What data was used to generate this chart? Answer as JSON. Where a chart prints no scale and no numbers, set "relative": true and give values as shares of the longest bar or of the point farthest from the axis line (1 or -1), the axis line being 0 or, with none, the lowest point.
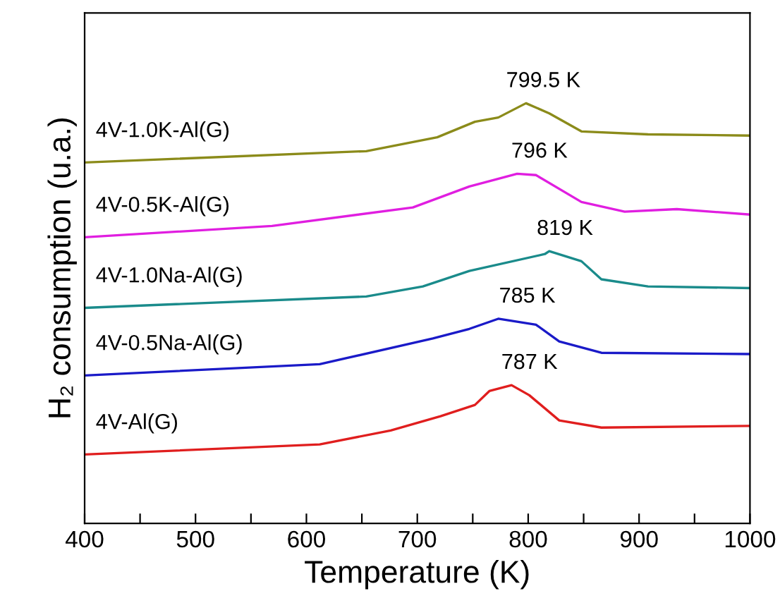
{
  "chart_data": {
    "type": "line",
    "relative": true,
    "xlabel": "Temperature (K)",
    "ylabel": "H₂ consumption (u.a.)",
    "xlim": [
      400,
      1000
    ],
    "xticks": [
      400,
      {
        "value": 450,
        "label": null
      },
      500,
      {
        "value": 550,
        "label": null
      },
      600,
      {
        "value": 650,
        "label": null
      },
      700,
      {
        "value": 750,
        "label": null
      },
      800,
      {
        "value": 850,
        "label": null
      },
      900,
      {
        "value": 950,
        "label": null
      },
      1000
    ],
    "tick_labels": "x",
    "grid": false,
    "legend": false,
    "marker": "none",
    "line_style": "solid",
    "series": [
      {
        "name": "4V-1.0K-Al(G)",
        "color": "#8b8b1a",
        "x": [
          400,
          654,
          718,
          752,
          773,
          798,
          819,
          848,
          908,
          1000
        ],
        "values": [
          0.859,
          0.886,
          0.919,
          0.956,
          0.966,
          1.0,
          0.976,
          0.933,
          0.926,
          0.923
        ]
      },
      {
        "name": "4V-0.5K-Al(G)",
        "color": "#e01ee0",
        "x": [
          400,
          569,
          696,
          747,
          790,
          807,
          848,
          887,
          934,
          1000
        ],
        "values": [
          0.681,
          0.708,
          0.752,
          0.802,
          0.832,
          0.829,
          0.765,
          0.742,
          0.748,
          0.735
        ]
      },
      {
        "name": "4V-1.0Na-Al(G)",
        "color": "#1a8b8b",
        "x": [
          400,
          654,
          705,
          747,
          815,
          819,
          848,
          866,
          908,
          1000
        ],
        "values": [
          0.513,
          0.54,
          0.564,
          0.601,
          0.641,
          0.648,
          0.624,
          0.581,
          0.564,
          0.56
        ]
      },
      {
        "name": "4V-0.5Na-Al(G)",
        "color": "#1a1ac8",
        "x": [
          400,
          612,
          714,
          747,
          773,
          807,
          828,
          866,
          1000
        ],
        "values": [
          0.352,
          0.379,
          0.44,
          0.463,
          0.487,
          0.473,
          0.433,
          0.406,
          0.403
        ]
      },
      {
        "name": "4V-Al(G)",
        "color": "#e01e1e",
        "x": [
          400,
          612,
          676,
          721,
          752,
          765,
          785,
          801,
          828,
          866,
          1000
        ],
        "values": [
          0.164,
          0.188,
          0.221,
          0.255,
          0.282,
          0.315,
          0.329,
          0.305,
          0.245,
          0.228,
          0.232
        ]
      }
    ],
    "annotations": [
      {
        "text": "799.5 K",
        "x": 799.5,
        "y": 1.0
      },
      {
        "text": "796 K",
        "x": 796,
        "y": 0.832
      },
      {
        "text": "819 K",
        "x": 819,
        "y": 0.648
      },
      {
        "text": "785 K",
        "x": 785,
        "y": 0.487
      },
      {
        "text": "787 K",
        "x": 787,
        "y": 0.329
      }
    ]
  }
}
